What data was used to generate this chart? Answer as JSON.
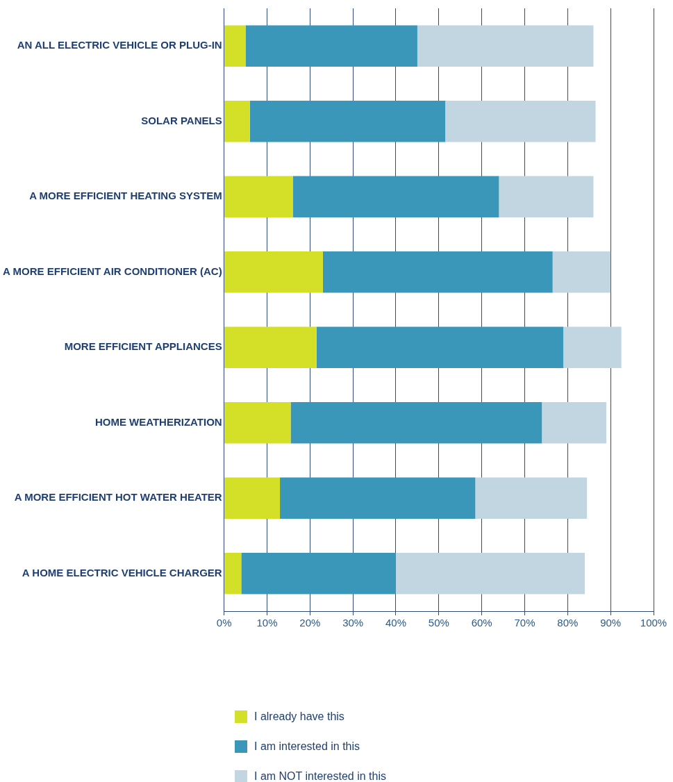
{
  "chart_data": {
    "type": "bar",
    "orientation": "horizontal",
    "stacked": true,
    "categories": [
      "AN ALL ELECTRIC VEHICLE OR PLUG-IN",
      "SOLAR PANELS",
      "A MORE EFFICIENT HEATING SYSTEM",
      "A MORE EFFICIENT AIR CONDITIONER (AC)",
      "MORE EFFICIENT APPLIANCES",
      "HOME WEATHERIZATION",
      "A MORE EFFICIENT HOT WATER HEATER",
      "A HOME ELECTRIC VEHICLE CHARGER"
    ],
    "series": [
      {
        "name": "I already have this",
        "color": "#d4df27",
        "values": [
          5,
          6,
          16,
          23,
          21.5,
          15.5,
          13,
          4
        ]
      },
      {
        "name": "I am interested in this",
        "color": "#3a97b9",
        "values": [
          40,
          45.5,
          48,
          53.5,
          57.5,
          58.5,
          45.5,
          36
        ]
      },
      {
        "name": "I am NOT interested in this",
        "color": "#c2d6e2",
        "values": [
          41,
          35,
          22,
          13.5,
          13.5,
          15,
          26,
          44
        ]
      }
    ],
    "xlim": [
      0,
      100
    ],
    "xticks": [
      {
        "value": 0,
        "label": "0%"
      },
      {
        "value": 10,
        "label": "10%"
      },
      {
        "value": 20,
        "label": "20%"
      },
      {
        "value": 30,
        "label": "30%"
      },
      {
        "value": 40,
        "label": "40%"
      },
      {
        "value": 50,
        "label": "50%"
      },
      {
        "value": 60,
        "label": "60%"
      },
      {
        "value": 70,
        "label": "70%"
      },
      {
        "value": 80,
        "label": "80%"
      },
      {
        "value": 90,
        "label": "90%"
      },
      {
        "value": 100,
        "label": "100%"
      }
    ],
    "grid": "x",
    "legend": "bottom"
  }
}
